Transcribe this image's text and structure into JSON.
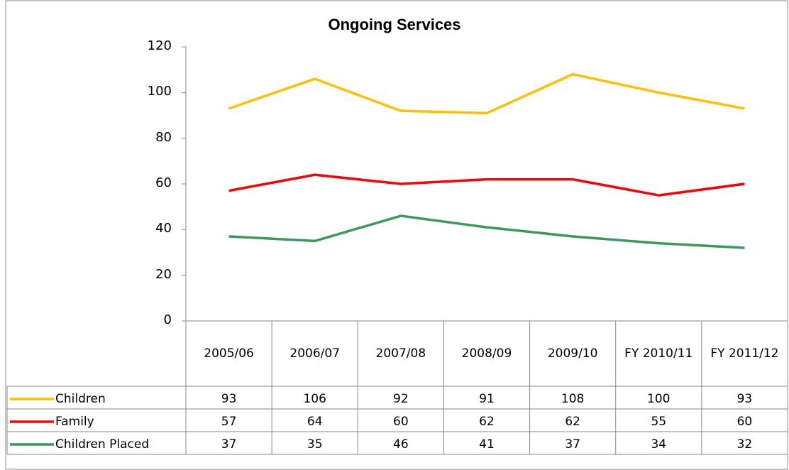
{
  "chart_data": {
    "type": "line",
    "title": "Ongoing Services",
    "categories": [
      "2005/06",
      "2006/07",
      "2007/08",
      "2008/09",
      "2009/10",
      "FY 2010/11",
      "FY 2011/12"
    ],
    "series": [
      {
        "name": "Children",
        "color": "#ffc000",
        "values": [
          93,
          106,
          92,
          91,
          108,
          100,
          93
        ]
      },
      {
        "name": "Family",
        "color": "#ff0000",
        "values": [
          57,
          64,
          60,
          62,
          62,
          55,
          60
        ]
      },
      {
        "name": "Children Placed",
        "color": "#3a9a5c",
        "values": [
          37,
          35,
          46,
          41,
          37,
          34,
          32
        ]
      }
    ],
    "ylim": [
      0,
      120
    ],
    "yticks": [
      0,
      20,
      40,
      60,
      80,
      100,
      120
    ],
    "grid": false,
    "data_table": true
  }
}
